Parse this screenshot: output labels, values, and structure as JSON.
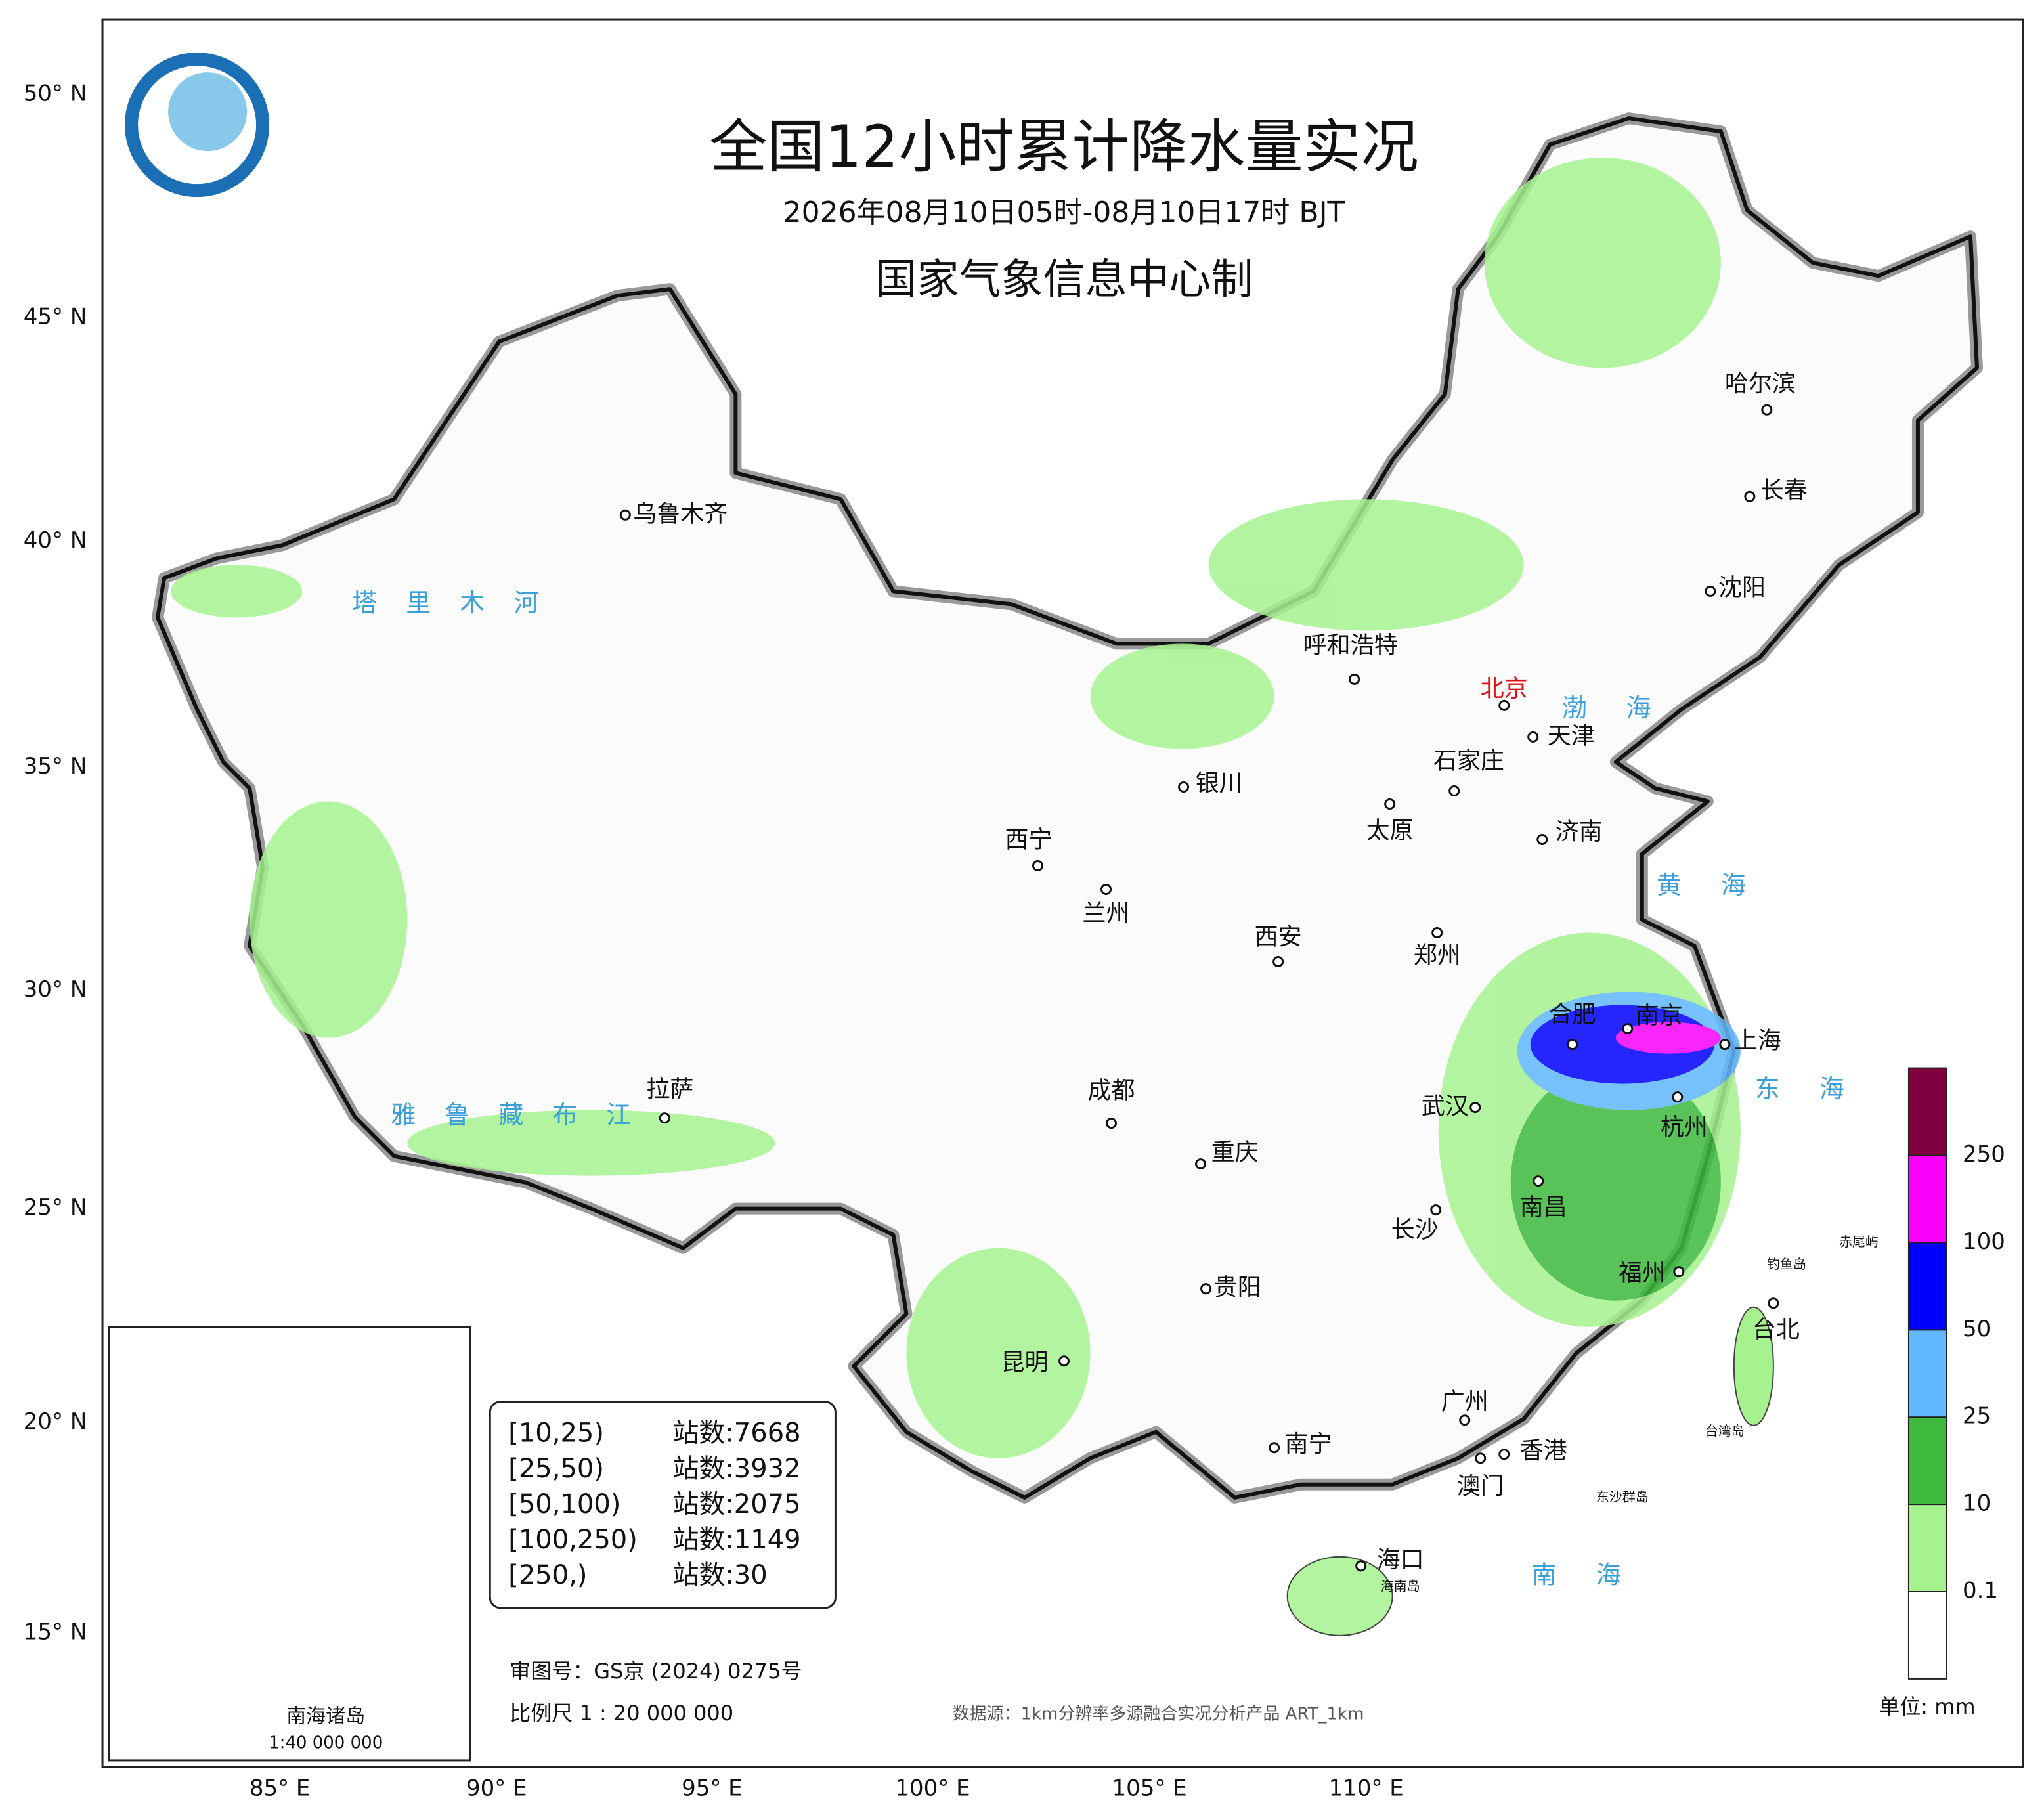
{
  "header": {
    "title": "全国12小时累计降水量实况",
    "period": "2026年08月10日05时-08月10日17时 BJT",
    "producer": "国家气象信息中心制"
  },
  "lat_labels": [
    "50° N",
    "45° N",
    "40° N",
    "35° N",
    "30° N",
    "25° N",
    "20° N",
    "15° N"
  ],
  "lon_labels": [
    "85° E",
    "90° E",
    "95° E",
    "100° E",
    "105° E",
    "110° E"
  ],
  "cities": [
    "乌鲁木齐",
    "哈尔滨",
    "长春",
    "沈阳",
    "呼和浩特",
    "北京",
    "天津",
    "石家庄",
    "银川",
    "太原",
    "济南",
    "西宁",
    "兰州",
    "西安",
    "郑州",
    "合肥",
    "南京",
    "上海",
    "拉萨",
    "成都",
    "武汉",
    "杭州",
    "重庆",
    "长沙",
    "南昌",
    "贵阳",
    "福州",
    "台北",
    "昆明",
    "广州",
    "南宁",
    "香港",
    "澳门",
    "海口"
  ],
  "seas": [
    "渤海",
    "黄海",
    "东海",
    "南海"
  ],
  "rivers": [
    "塔里木河",
    "雅鲁藏布江"
  ],
  "islands": [
    "钓鱼岛",
    "赤尾屿",
    "台湾岛",
    "海南岛",
    "东沙群岛"
  ],
  "stations": [
    {
      "range": "[10,25)",
      "count": "站数:7668"
    },
    {
      "range": "[25,50)",
      "count": "站数:3932"
    },
    {
      "range": "[50,100)",
      "count": "站数:2075"
    },
    {
      "range": "[100,250)",
      "count": "站数:1149"
    },
    {
      "range": "[250,)",
      "count": "站数:30"
    }
  ],
  "legend": {
    "colors": [
      "#ffffff",
      "#a6f28f",
      "#3dba3d",
      "#61b8ff",
      "#0000fe",
      "#fa00fa",
      "#800040"
    ],
    "labels": [
      "0.1",
      "10",
      "25",
      "50",
      "100",
      "250"
    ],
    "unit": "单位: mm"
  },
  "notes": {
    "approval": "审图号：GS京 (2024) 0275号",
    "scale": "比例尺 1 : 20 000 000",
    "source": "数据源：1km分辨率多源融合实况分析产品 ART_1km"
  },
  "inset": {
    "title": "南海诸岛",
    "scale": "1:40 000 000"
  }
}
